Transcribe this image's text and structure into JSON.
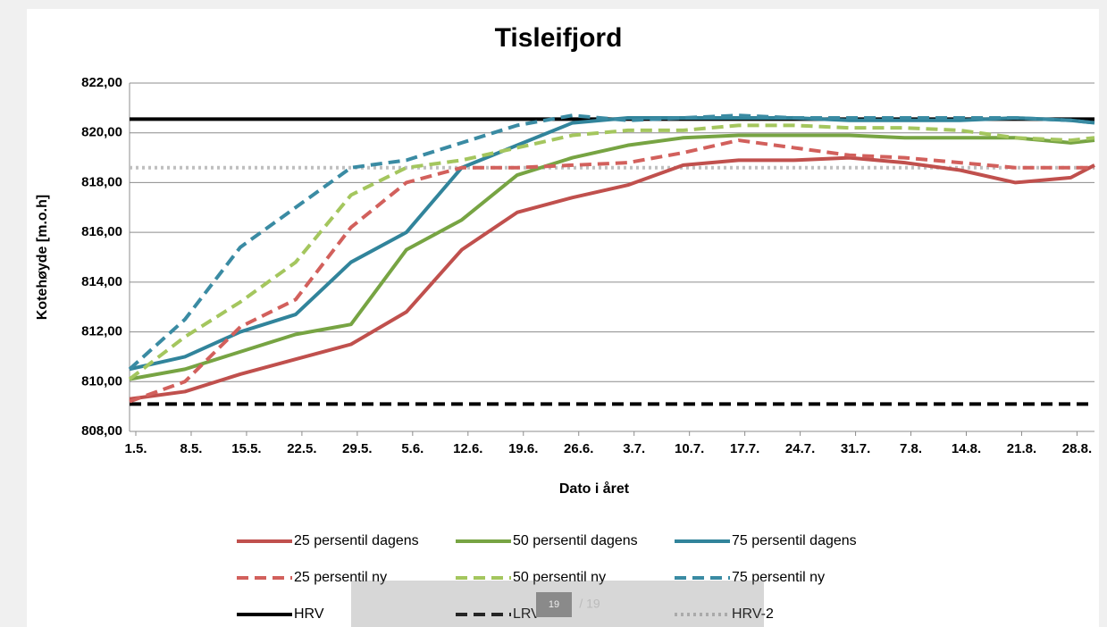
{
  "chart_data": {
    "type": "line",
    "title": "Tisleifjord",
    "xlabel": "Dato i året",
    "ylabel": "Kotehøyde [m.o.h]",
    "x": [
      0,
      7,
      14,
      21,
      28,
      35,
      42,
      49,
      56,
      63,
      70,
      77,
      84,
      91,
      98,
      105,
      112,
      119,
      122
    ],
    "xlim": [
      0,
      122
    ],
    "xticks": [
      {
        "value": 0,
        "label": "1.5."
      },
      {
        "value": 7,
        "label": "8.5."
      },
      {
        "value": 14,
        "label": "15.5."
      },
      {
        "value": 21,
        "label": "22.5."
      },
      {
        "value": 28,
        "label": "29.5."
      },
      {
        "value": 35,
        "label": "5.6."
      },
      {
        "value": 42,
        "label": "12.6."
      },
      {
        "value": 49,
        "label": "19.6."
      },
      {
        "value": 56,
        "label": "26.6."
      },
      {
        "value": 63,
        "label": "3.7."
      },
      {
        "value": 70,
        "label": "10.7."
      },
      {
        "value": 77,
        "label": "17.7."
      },
      {
        "value": 84,
        "label": "24.7."
      },
      {
        "value": 91,
        "label": "31.7."
      },
      {
        "value": 98,
        "label": "7.8."
      },
      {
        "value": 105,
        "label": "14.8."
      },
      {
        "value": 112,
        "label": "21.8."
      },
      {
        "value": 119,
        "label": "28.8."
      }
    ],
    "ylim": [
      808,
      822
    ],
    "yticks": [
      {
        "value": 808,
        "label": "808,00"
      },
      {
        "value": 810,
        "label": "810,00"
      },
      {
        "value": 812,
        "label": "812,00"
      },
      {
        "value": 814,
        "label": "814,00"
      },
      {
        "value": 816,
        "label": "816,00"
      },
      {
        "value": 818,
        "label": "818,00"
      },
      {
        "value": 820,
        "label": "820,00"
      },
      {
        "value": 822,
        "label": "822,00"
      }
    ],
    "grid": true,
    "series": [
      {
        "name": "25 persentil dagens",
        "color": "#c0504d",
        "style": "solid",
        "values": [
          809.3,
          809.6,
          810.3,
          810.9,
          811.5,
          812.8,
          815.3,
          816.8,
          817.4,
          817.9,
          818.7,
          818.9,
          818.9,
          819.0,
          818.8,
          818.5,
          818.0,
          818.2,
          818.7
        ]
      },
      {
        "name": "50 persentil dagens",
        "color": "#77a443",
        "style": "solid",
        "values": [
          810.1,
          810.5,
          811.2,
          811.9,
          812.3,
          815.3,
          816.5,
          818.3,
          819.0,
          819.5,
          819.8,
          819.9,
          819.9,
          819.9,
          819.8,
          819.8,
          819.8,
          819.6,
          819.7
        ]
      },
      {
        "name": "75 persentil dagens",
        "color": "#31849b",
        "style": "solid",
        "values": [
          810.5,
          811.0,
          812.0,
          812.7,
          814.8,
          816.0,
          818.6,
          819.5,
          820.4,
          820.6,
          820.6,
          820.6,
          820.6,
          820.5,
          820.5,
          820.5,
          820.6,
          820.5,
          820.4
        ]
      },
      {
        "name": "25 persentil ny",
        "color": "#d2605c",
        "style": "dashed",
        "values": [
          809.2,
          810.0,
          812.2,
          813.3,
          816.2,
          818.0,
          818.6,
          818.6,
          818.7,
          818.8,
          819.2,
          819.7,
          819.4,
          819.1,
          819.0,
          818.8,
          818.6,
          818.6,
          818.6
        ]
      },
      {
        "name": "50 persentil ny",
        "color": "#a4c65e",
        "style": "dashed",
        "values": [
          810.1,
          811.8,
          813.2,
          814.8,
          817.5,
          818.6,
          818.9,
          819.4,
          819.9,
          820.1,
          820.1,
          820.3,
          820.3,
          820.2,
          820.2,
          820.1,
          819.8,
          819.7,
          819.8
        ]
      },
      {
        "name": "75 persentil ny",
        "color": "#3a8ba3",
        "style": "dashed",
        "values": [
          810.5,
          812.5,
          815.4,
          817.0,
          818.6,
          818.9,
          819.6,
          820.3,
          820.7,
          820.5,
          820.6,
          820.7,
          820.6,
          820.6,
          820.6,
          820.6,
          820.6,
          820.5,
          820.4
        ]
      }
    ],
    "hlines": [
      {
        "name": "HRV",
        "color": "#000000",
        "style": "solid",
        "value": 820.55
      },
      {
        "name": "LRV",
        "color": "#000000",
        "style": "dashed",
        "value": 809.1
      },
      {
        "name": "HRV-2",
        "color": "#bfbfbf",
        "style": "dotted",
        "value": 818.6
      }
    ]
  },
  "viewer": {
    "page": "19",
    "total": "/ 19"
  }
}
